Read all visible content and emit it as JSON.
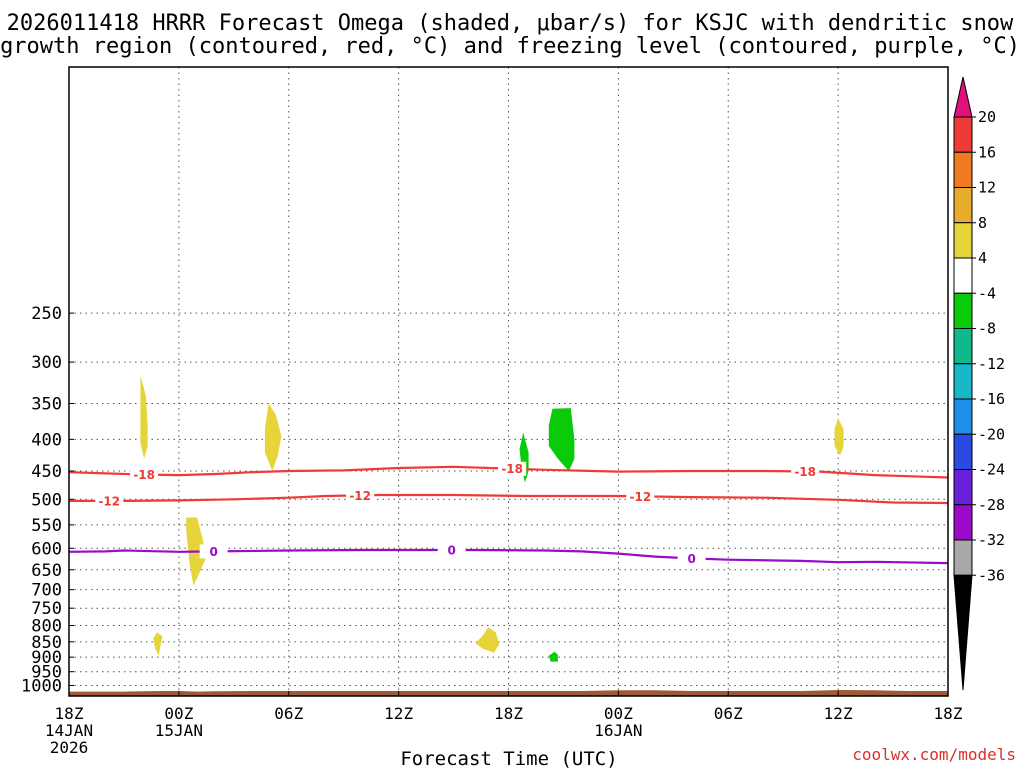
{
  "chart_data": {
    "type": "time-height cross section",
    "title_line1": "2026011418 HRRR Forecast Omega (shaded, μbar/s) for KSJC with dendritic snow",
    "title_line2": "growth region (contoured, red, °C) and freezing level (contoured, purple, °C)",
    "xlabel": "Forecast Time (UTC)",
    "credit": "coolwx.com/models",
    "x_range_hours": [
      0,
      48
    ],
    "y_range_hpa": [
      100,
      1040
    ],
    "x_ticks": [
      {
        "hour": 0,
        "l1": "18Z",
        "l2": "14JAN",
        "l3": "2026"
      },
      {
        "hour": 6,
        "l1": "00Z",
        "l2": "15JAN",
        "l3": ""
      },
      {
        "hour": 12,
        "l1": "06Z",
        "l2": "",
        "l3": ""
      },
      {
        "hour": 18,
        "l1": "12Z",
        "l2": "",
        "l3": ""
      },
      {
        "hour": 24,
        "l1": "18Z",
        "l2": "",
        "l3": ""
      },
      {
        "hour": 30,
        "l1": "00Z",
        "l2": "16JAN",
        "l3": ""
      },
      {
        "hour": 36,
        "l1": "06Z",
        "l2": "",
        "l3": ""
      },
      {
        "hour": 42,
        "l1": "12Z",
        "l2": "",
        "l3": ""
      },
      {
        "hour": 48,
        "l1": "18Z",
        "l2": "",
        "l3": ""
      }
    ],
    "y_ticks": [
      {
        "p": 250,
        "label": "250"
      },
      {
        "p": 300,
        "label": "300"
      },
      {
        "p": 350,
        "label": "350"
      },
      {
        "p": 400,
        "label": "400"
      },
      {
        "p": 450,
        "label": "450"
      },
      {
        "p": 500,
        "label": "500"
      },
      {
        "p": 550,
        "label": "550"
      },
      {
        "p": 600,
        "label": "600"
      },
      {
        "p": 650,
        "label": "650"
      },
      {
        "p": 700,
        "label": "700"
      },
      {
        "p": 750,
        "label": "750"
      },
      {
        "p": 800,
        "label": "800"
      },
      {
        "p": 850,
        "label": "850"
      },
      {
        "p": 900,
        "label": "900"
      },
      {
        "p": 950,
        "label": "950"
      },
      {
        "p": 1000,
        "label": "1000"
      }
    ],
    "colorbar": {
      "labels": [
        "20",
        "16",
        "12",
        "8",
        "4",
        "-4",
        "-8",
        "-12",
        "-16",
        "-20",
        "-24",
        "-28",
        "-32",
        "-36"
      ],
      "top_arrow_color": "#e0107c",
      "bottom_arrow_color": "#000000",
      "band_colors": [
        "#ee3b35",
        "#f07a24",
        "#e8ac2c",
        "#e6d43a",
        "#ffffff",
        "#0acb0a",
        "#10b98a",
        "#17b7c8",
        "#1e8ee6",
        "#2a4ae0",
        "#6a20d8",
        "#9a0ac8",
        "#a8a8a8"
      ]
    },
    "series": [
      {
        "name": "-18",
        "color": "#ee3b35",
        "label_hours": [
          4.1,
          24.2,
          40.2
        ],
        "points": [
          [
            0,
            452
          ],
          [
            2,
            454
          ],
          [
            4,
            456
          ],
          [
            6,
            457
          ],
          [
            8,
            455
          ],
          [
            10,
            452
          ],
          [
            12,
            450
          ],
          [
            15,
            449
          ],
          [
            18,
            445
          ],
          [
            21,
            443
          ],
          [
            24,
            446
          ],
          [
            26,
            448
          ],
          [
            30,
            451
          ],
          [
            34,
            450
          ],
          [
            38,
            450
          ],
          [
            41,
            451
          ],
          [
            44,
            457
          ],
          [
            46,
            459
          ],
          [
            48,
            461
          ]
        ]
      },
      {
        "name": "-12",
        "color": "#ee3b35",
        "label_hours": [
          2.2,
          15.9,
          31.2
        ],
        "points": [
          [
            0,
            503
          ],
          [
            3,
            503
          ],
          [
            6,
            502
          ],
          [
            9,
            500
          ],
          [
            12,
            497
          ],
          [
            14,
            494
          ],
          [
            17,
            492
          ],
          [
            21,
            492
          ],
          [
            25,
            494
          ],
          [
            28,
            494
          ],
          [
            30,
            494
          ],
          [
            34,
            496
          ],
          [
            38,
            497
          ],
          [
            42,
            501
          ],
          [
            45,
            506
          ],
          [
            48,
            507
          ]
        ]
      },
      {
        "name": "0",
        "color": "#9a0ac8",
        "label_hours": [
          7.9,
          20.9,
          34.0
        ],
        "points": [
          [
            0,
            608
          ],
          [
            2,
            607
          ],
          [
            3,
            605
          ],
          [
            6,
            608
          ],
          [
            8,
            607
          ],
          [
            12,
            605
          ],
          [
            16,
            604
          ],
          [
            22,
            604
          ],
          [
            26,
            605
          ],
          [
            28,
            607
          ],
          [
            30,
            612
          ],
          [
            32,
            619
          ],
          [
            34,
            623
          ],
          [
            36,
            626
          ],
          [
            40,
            629
          ],
          [
            42,
            632
          ],
          [
            44,
            631
          ],
          [
            48,
            634
          ]
        ]
      }
    ],
    "omega_regions": [
      {
        "fill": "#e6d43a",
        "points": [
          [
            3.9,
            315
          ],
          [
            4.2,
            340
          ],
          [
            4.3,
            380
          ],
          [
            4.3,
            410
          ],
          [
            4.1,
            430
          ],
          [
            3.9,
            405
          ],
          [
            3.9,
            350
          ]
        ]
      },
      {
        "fill": "#e6d43a",
        "points": [
          [
            10.9,
            350
          ],
          [
            11.3,
            365
          ],
          [
            11.6,
            395
          ],
          [
            11.4,
            425
          ],
          [
            11.1,
            450
          ],
          [
            10.7,
            420
          ],
          [
            10.7,
            385
          ]
        ]
      },
      {
        "fill": "#e6d43a",
        "points": [
          [
            6.4,
            535
          ],
          [
            7.0,
            535
          ],
          [
            7.3,
            580
          ],
          [
            7.5,
            620
          ],
          [
            7.1,
            660
          ],
          [
            6.8,
            690
          ],
          [
            6.6,
            640
          ],
          [
            6.5,
            600
          ],
          [
            6.4,
            560
          ]
        ]
      },
      {
        "fill": "#e6d43a",
        "points": [
          [
            4.8,
            820
          ],
          [
            5.1,
            832
          ],
          [
            5.0,
            860
          ],
          [
            4.9,
            895
          ],
          [
            4.7,
            870
          ],
          [
            4.6,
            840
          ]
        ]
      },
      {
        "fill": "#e6d43a",
        "points": [
          [
            22.9,
            805
          ],
          [
            23.3,
            820
          ],
          [
            23.5,
            858
          ],
          [
            23.2,
            885
          ],
          [
            22.6,
            872
          ],
          [
            22.2,
            855
          ],
          [
            22.6,
            830
          ]
        ]
      },
      {
        "fill": "#e6d43a",
        "points": [
          [
            42.0,
            370
          ],
          [
            42.3,
            385
          ],
          [
            42.3,
            410
          ],
          [
            42.1,
            425
          ],
          [
            41.8,
            410
          ],
          [
            41.8,
            385
          ]
        ]
      },
      {
        "fill": "#0acb0a",
        "points": [
          [
            24.8,
            390
          ],
          [
            25.1,
            420
          ],
          [
            25.1,
            450
          ],
          [
            24.9,
            470
          ],
          [
            24.7,
            440
          ],
          [
            24.6,
            415
          ]
        ]
      },
      {
        "fill": "#0acb0a",
        "points": [
          [
            26.4,
            357
          ],
          [
            27.4,
            356
          ],
          [
            27.6,
            400
          ],
          [
            27.6,
            430
          ],
          [
            27.3,
            450
          ],
          [
            26.7,
            430
          ],
          [
            26.2,
            410
          ],
          [
            26.2,
            380
          ]
        ]
      },
      {
        "fill": "#0acb0a",
        "points": [
          [
            26.5,
            882
          ],
          [
            26.7,
            892
          ],
          [
            26.7,
            915
          ],
          [
            26.3,
            915
          ],
          [
            26.2,
            895
          ]
        ]
      }
    ],
    "terrain": {
      "fill": "#9c5a36",
      "points": [
        [
          0,
          1023
        ],
        [
          3,
          1023
        ],
        [
          5,
          1021
        ],
        [
          6,
          1021
        ],
        [
          7,
          1023
        ],
        [
          8,
          1022
        ],
        [
          10,
          1021
        ],
        [
          18,
          1021
        ],
        [
          28,
          1021
        ],
        [
          30,
          1018
        ],
        [
          32,
          1018
        ],
        [
          34,
          1021
        ],
        [
          40,
          1021
        ],
        [
          42,
          1017
        ],
        [
          44,
          1018
        ],
        [
          46,
          1021
        ],
        [
          48,
          1021
        ]
      ]
    }
  }
}
